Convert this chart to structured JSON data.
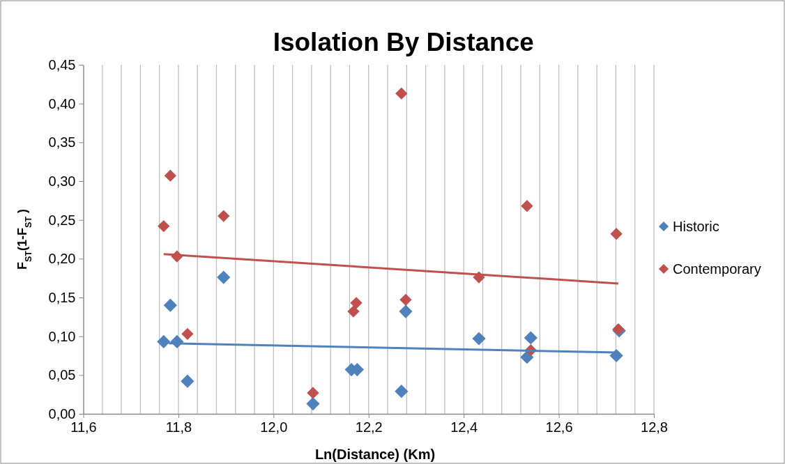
{
  "chart_data": {
    "type": "scatter",
    "title": "Isolation By Distance",
    "xlabel": "Ln(Distance) (Km)",
    "ylabel": "F$_{ST}$(1-F$_{ST}$ )",
    "xlim": [
      11.6,
      12.8
    ],
    "xticks": [
      {
        "value": 11.6,
        "label": "11,6"
      },
      {
        "value": 11.64,
        "label": null
      },
      {
        "value": 11.68,
        "label": null
      },
      {
        "value": 11.72,
        "label": null
      },
      {
        "value": 11.76,
        "label": null
      },
      {
        "value": 11.8,
        "label": "11,8"
      },
      {
        "value": 11.84,
        "label": null
      },
      {
        "value": 11.88,
        "label": null
      },
      {
        "value": 11.92,
        "label": null
      },
      {
        "value": 11.96,
        "label": null
      },
      {
        "value": 12.0,
        "label": "12,0"
      },
      {
        "value": 12.04,
        "label": null
      },
      {
        "value": 12.08,
        "label": null
      },
      {
        "value": 12.12,
        "label": null
      },
      {
        "value": 12.16,
        "label": null
      },
      {
        "value": 12.2,
        "label": "12,2"
      },
      {
        "value": 12.24,
        "label": null
      },
      {
        "value": 12.28,
        "label": null
      },
      {
        "value": 12.32,
        "label": null
      },
      {
        "value": 12.36,
        "label": null
      },
      {
        "value": 12.4,
        "label": "12,4"
      },
      {
        "value": 12.44,
        "label": null
      },
      {
        "value": 12.48,
        "label": null
      },
      {
        "value": 12.52,
        "label": null
      },
      {
        "value": 12.56,
        "label": null
      },
      {
        "value": 12.6,
        "label": "12,6"
      },
      {
        "value": 12.64,
        "label": null
      },
      {
        "value": 12.68,
        "label": null
      },
      {
        "value": 12.72,
        "label": null
      },
      {
        "value": 12.76,
        "label": null
      },
      {
        "value": 12.8,
        "label": "12,8"
      }
    ],
    "ylim": [
      0,
      0.45
    ],
    "yticks": [
      {
        "value": 0,
        "label": "0,00"
      },
      {
        "value": 0.05,
        "label": "0,05"
      },
      {
        "value": 0.1,
        "label": "0,10"
      },
      {
        "value": 0.15,
        "label": "0,15"
      },
      {
        "value": 0.2,
        "label": "0,20"
      },
      {
        "value": 0.25,
        "label": "0,25"
      },
      {
        "value": 0.3,
        "label": "0,30"
      },
      {
        "value": 0.35,
        "label": "0,35"
      },
      {
        "value": 0.4,
        "label": "0,40"
      },
      {
        "value": 0.45,
        "label": "0,45"
      }
    ],
    "grid": "x",
    "legend": "right",
    "marker": "diamond",
    "series": [
      {
        "name": "Historic",
        "color": "#4f81bd",
        "x": [
          11.769,
          11.783,
          11.797,
          11.819,
          11.895,
          12.083,
          12.164,
          12.176,
          12.269,
          12.278,
          12.432,
          12.533,
          12.541,
          12.721,
          12.727
        ],
        "values": [
          0.093,
          0.14,
          0.093,
          0.042,
          0.176,
          0.013,
          0.057,
          0.057,
          0.029,
          0.132,
          0.097,
          0.073,
          0.098,
          0.075,
          0.107
        ]
      },
      {
        "name": "Contemporary",
        "color": "#c0504d",
        "x": [
          11.769,
          11.783,
          11.797,
          11.819,
          11.895,
          12.083,
          12.168,
          12.174,
          12.269,
          12.278,
          12.432,
          12.533,
          12.541,
          12.721,
          12.725
        ],
        "values": [
          0.242,
          0.307,
          0.203,
          0.103,
          0.255,
          0.027,
          0.132,
          0.143,
          0.413,
          0.147,
          0.176,
          0.268,
          0.082,
          0.232,
          0.109
        ]
      },
      {
        "type": "line",
        "marker": "none",
        "color": "#4f81bd",
        "x": [
          11.78,
          12.725
        ],
        "values": [
          0.091,
          0.079
        ]
      },
      {
        "type": "line",
        "marker": "none",
        "color": "#c0504d",
        "x": [
          11.769,
          12.725
        ],
        "values": [
          0.206,
          0.168
        ]
      }
    ]
  }
}
